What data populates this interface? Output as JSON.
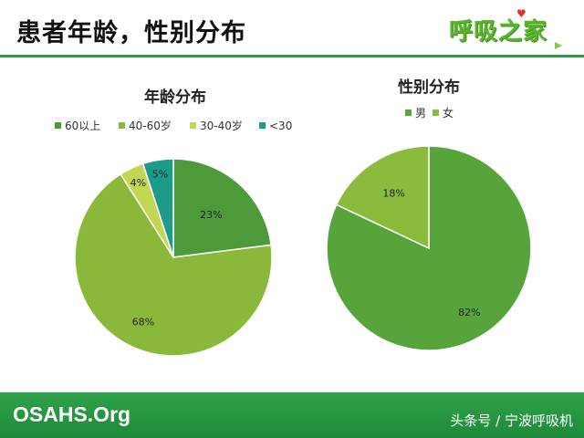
{
  "slide": {
    "title": "患者年龄，性别分布",
    "logo_text": "呼吸之家",
    "footer_left": "OSAHS.Org",
    "footer_right": "头条号 / 宁波呼吸机"
  },
  "colors": {
    "title_rule": "#2e9a46",
    "footer": "#23913f"
  },
  "chart_data": [
    {
      "type": "pie",
      "title": "年龄分布",
      "categories": [
        "60以上",
        "40-60岁",
        "30-40岁",
        "<30"
      ],
      "values": [
        23,
        68,
        4,
        5
      ],
      "labels": [
        "23%",
        "68%",
        "4%",
        "5%"
      ],
      "colors": [
        "#4e9a3a",
        "#8ab83a",
        "#c3d653",
        "#1c9b8a"
      ],
      "legend_position": "top"
    },
    {
      "type": "pie",
      "title": "性别分布",
      "categories": [
        "男",
        "女"
      ],
      "values": [
        82,
        18
      ],
      "labels": [
        "82%",
        "18%"
      ],
      "colors": [
        "#57a43b",
        "#8bbb3c"
      ],
      "legend_position": "top"
    }
  ]
}
